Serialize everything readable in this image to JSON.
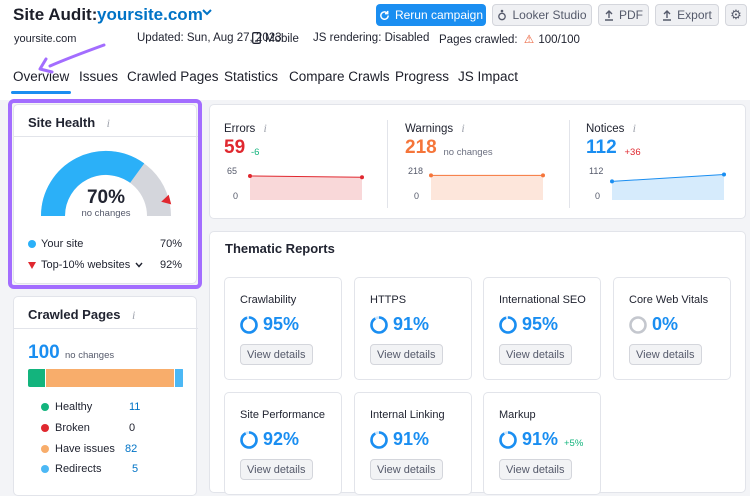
{
  "header": {
    "title": "Site Audit:",
    "domain": "yoursite.com",
    "buttons": {
      "rerun": "Rerun campaign",
      "looker": "Looker Studio",
      "pdf": "PDF",
      "export": "Export"
    },
    "meta": {
      "site": "yoursite.com",
      "updated": "Updated: Sun, Aug 27, 2023",
      "device": "Mobile",
      "js": "JS rendering: Disabled",
      "crawled_label": "Pages crawled:",
      "crawled_value": "100/100"
    }
  },
  "tabs": [
    "Overview",
    "Issues",
    "Crawled Pages",
    "Statistics",
    "Compare Crawls",
    "Progress",
    "JS Impact"
  ],
  "active_tab": "Overview",
  "site_health": {
    "title": "Site Health",
    "info": "i",
    "value": "70%",
    "subtitle": "no changes",
    "score": 0.7,
    "top10": 0.92,
    "legend": [
      {
        "label": "Your site",
        "value": "70%"
      },
      {
        "label": "Top-10% websites",
        "value": "92%"
      }
    ]
  },
  "crawled_pages": {
    "title": "Crawled Pages",
    "info": "i",
    "total": "100",
    "note": "no changes",
    "items": [
      {
        "label": "Healthy",
        "value": "11",
        "color": "#13b47d"
      },
      {
        "label": "Broken",
        "value": "0",
        "color": "#e0282f"
      },
      {
        "label": "Have issues",
        "value": "82",
        "color": "#f8ad6b"
      },
      {
        "label": "Redirects",
        "value": "5",
        "color": "#4cb8f5"
      }
    ]
  },
  "metrics": [
    {
      "label": "Errors",
      "value": "59",
      "delta": "-6",
      "color": "#e0282f",
      "delta_color": "#13b47d",
      "ymax": "65",
      "ymin": "0",
      "start": 0.8,
      "end": 0.76
    },
    {
      "label": "Warnings",
      "value": "218",
      "delta": "no changes",
      "color": "#f5753a",
      "delta_color": "#6c7080",
      "ymax": "218",
      "ymin": "0",
      "start": 0.82,
      "end": 0.82
    },
    {
      "label": "Notices",
      "value": "112",
      "delta": "+36",
      "color": "#1a8ef1",
      "delta_color": "#e0282f",
      "ymax": "112",
      "ymin": "0",
      "start": 0.62,
      "end": 0.85
    }
  ],
  "thematic": {
    "title": "Thematic Reports",
    "view": "View details",
    "reports": [
      {
        "name": "Crawlability",
        "value": "95%",
        "pct": 0.95
      },
      {
        "name": "HTTPS",
        "value": "91%",
        "pct": 0.91
      },
      {
        "name": "International SEO",
        "value": "95%",
        "pct": 0.95
      },
      {
        "name": "Core Web Vitals",
        "value": "0%",
        "pct": 0
      },
      {
        "name": "Site Performance",
        "value": "92%",
        "pct": 0.92
      },
      {
        "name": "Internal Linking",
        "value": "91%",
        "pct": 0.91
      },
      {
        "name": "Markup",
        "value": "91%",
        "pct": 0.91,
        "delta": "+5%"
      }
    ]
  }
}
